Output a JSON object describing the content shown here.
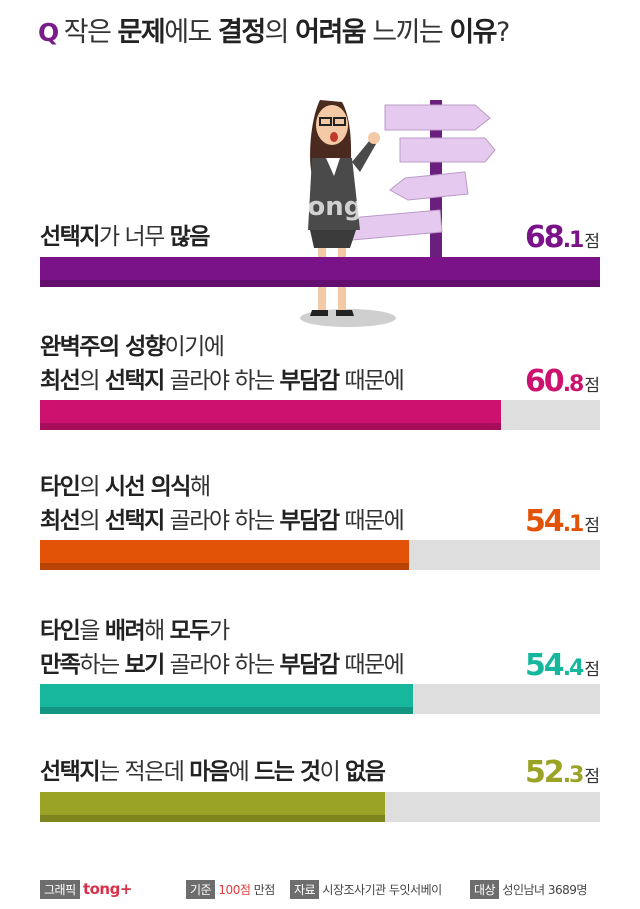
{
  "title": {
    "q": "Q",
    "parts": [
      {
        "text": "작은 ",
        "bold": false
      },
      {
        "text": "문제",
        "bold": true
      },
      {
        "text": "에도 ",
        "bold": false
      },
      {
        "text": "결정",
        "bold": true
      },
      {
        "text": "의 ",
        "bold": false
      },
      {
        "text": "어려움",
        "bold": true
      },
      {
        "text": " 느끼는 ",
        "bold": false
      },
      {
        "text": "이유",
        "bold": true
      },
      {
        "text": "?",
        "bold": false
      }
    ]
  },
  "watermark": "tong+",
  "chart_data": {
    "type": "bar",
    "orientation": "horizontal",
    "xlim": [
      0,
      100
    ],
    "unit": "점",
    "bars": [
      {
        "lines": [
          [
            {
              "text": "선택지",
              "bold": true
            },
            {
              "text": "가 너무 ",
              "bold": false
            },
            {
              "text": "많음",
              "bold": true
            }
          ]
        ],
        "value": 68.1,
        "int": "68",
        "dec": ".1",
        "color": "#7a1388"
      },
      {
        "lines": [
          [
            {
              "text": "완벽주의 성향",
              "bold": true
            },
            {
              "text": "이기에",
              "bold": false
            }
          ],
          [
            {
              "text": "최선",
              "bold": true
            },
            {
              "text": "의 ",
              "bold": false
            },
            {
              "text": "선택지",
              "bold": true
            },
            {
              "text": " 골라야 하는 ",
              "bold": false
            },
            {
              "text": "부담감",
              "bold": true
            },
            {
              "text": " 때문에",
              "bold": false
            }
          ]
        ],
        "value": 60.8,
        "int": "60",
        "dec": ".8",
        "color": "#cc116e"
      },
      {
        "lines": [
          [
            {
              "text": "타인",
              "bold": true
            },
            {
              "text": "의 ",
              "bold": false
            },
            {
              "text": "시선 의식",
              "bold": true
            },
            {
              "text": "해",
              "bold": false
            }
          ],
          [
            {
              "text": "최선",
              "bold": true
            },
            {
              "text": "의 ",
              "bold": false
            },
            {
              "text": "선택지",
              "bold": true
            },
            {
              "text": " 골라야 하는 ",
              "bold": false
            },
            {
              "text": "부담감",
              "bold": true
            },
            {
              "text": " 때문에",
              "bold": false
            }
          ]
        ],
        "value": 54.1,
        "int": "54",
        "dec": ".1",
        "color": "#e25307"
      },
      {
        "lines": [
          [
            {
              "text": "타인",
              "bold": true
            },
            {
              "text": "을 ",
              "bold": false
            },
            {
              "text": "배려",
              "bold": true
            },
            {
              "text": "해 ",
              "bold": false
            },
            {
              "text": "모두",
              "bold": true
            },
            {
              "text": "가",
              "bold": false
            }
          ],
          [
            {
              "text": "만족",
              "bold": true
            },
            {
              "text": "하는 ",
              "bold": false
            },
            {
              "text": "보기",
              "bold": true
            },
            {
              "text": " 골라야 하는 ",
              "bold": false
            },
            {
              "text": "부담감",
              "bold": true
            },
            {
              "text": " 때문에",
              "bold": false
            }
          ]
        ],
        "value": 54.4,
        "int": "54",
        "dec": ".4",
        "color": "#17b79e"
      },
      {
        "lines": [
          [
            {
              "text": "선택지",
              "bold": true
            },
            {
              "text": "는 적은데 ",
              "bold": false
            },
            {
              "text": "마음",
              "bold": true
            },
            {
              "text": "에 ",
              "bold": false
            },
            {
              "text": "드는 것",
              "bold": true
            },
            {
              "text": "이 ",
              "bold": false
            },
            {
              "text": "없음",
              "bold": true
            }
          ]
        ],
        "value": 52.3,
        "int": "52",
        "dec": ".3",
        "color": "#9aa326"
      }
    ]
  },
  "footer": {
    "graphic_tag": "그래픽",
    "brand": "tong+",
    "basis_tag": "기준",
    "basis_value": "100점",
    "basis_suffix": "만점",
    "source_tag": "자료",
    "source_value": "시장조사기관 두잇서베이",
    "target_tag": "대상",
    "target_value": "성인남녀 3689명"
  },
  "colors": {
    "purple": "#7a1388",
    "magenta": "#cc116e",
    "orange": "#e25307",
    "teal": "#17b79e",
    "olive": "#9aa326"
  }
}
